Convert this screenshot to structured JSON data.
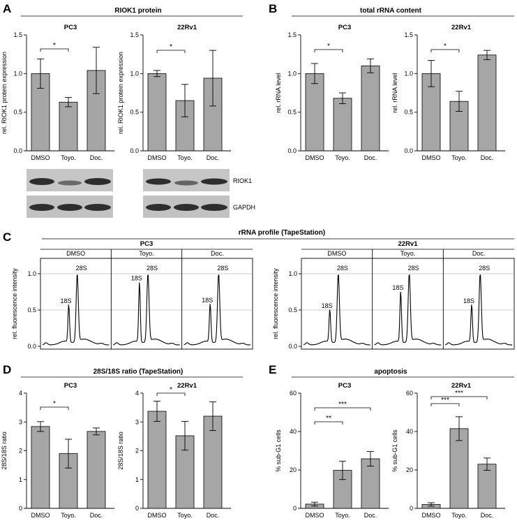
{
  "colors": {
    "bar": "#a6a6a6",
    "axis": "#000000",
    "blot_bg": "#c4c4c4",
    "band": "#303030",
    "grid": "#9a9a9a"
  },
  "panels": {
    "A": {
      "letter": "A",
      "title": "RIOK1 protein"
    },
    "B": {
      "letter": "B",
      "title": "total rRNA content"
    },
    "C": {
      "letter": "C",
      "title": "rRNA profile (TapeStation)"
    },
    "D": {
      "letter": "D",
      "title": "28S/18S ratio (TapeStation)"
    },
    "E": {
      "letter": "E",
      "title": "apoptosis"
    }
  },
  "blots": {
    "labels": [
      "RIOK1",
      "GAPDH"
    ]
  },
  "chart_data": [
    {
      "id": "A-PC3",
      "type": "bar",
      "title": "PC3",
      "ylabel": "rel. RIOK1 protein expression",
      "categories": [
        "DMSO",
        "Toyo.",
        "Doc."
      ],
      "values": [
        1.0,
        0.63,
        1.04
      ],
      "errors": [
        0.19,
        0.06,
        0.3
      ],
      "ylim": [
        0,
        1.5
      ],
      "yticks": [
        "0.0",
        "0.5",
        "1.0",
        "1.5"
      ],
      "significance": [
        {
          "from": 0,
          "to": 1,
          "label": "*"
        }
      ]
    },
    {
      "id": "A-22Rv1",
      "type": "bar",
      "title": "22Rv1",
      "ylabel": "rel. RIOK1 protein expression",
      "categories": [
        "DMSO",
        "Toyo.",
        "Doc."
      ],
      "values": [
        1.0,
        0.65,
        0.94
      ],
      "errors": [
        0.04,
        0.21,
        0.36
      ],
      "ylim": [
        0,
        1.5
      ],
      "yticks": [
        "0.0",
        "0.5",
        "1.0",
        "1.5"
      ],
      "significance": [
        {
          "from": 0,
          "to": 1,
          "label": "*"
        }
      ]
    },
    {
      "id": "B-PC3",
      "type": "bar",
      "title": "PC3",
      "ylabel": "rel. rRNA level",
      "categories": [
        "DMSO",
        "Toyo.",
        "Doc."
      ],
      "values": [
        1.0,
        0.68,
        1.1
      ],
      "errors": [
        0.13,
        0.07,
        0.09
      ],
      "ylim": [
        0,
        1.5
      ],
      "yticks": [
        "0.0",
        "0.5",
        "1.0",
        "1.5"
      ],
      "significance": [
        {
          "from": 0,
          "to": 1,
          "label": "*"
        }
      ]
    },
    {
      "id": "B-22Rv1",
      "type": "bar",
      "title": "22Rv1",
      "ylabel": "rel. rRNA level",
      "categories": [
        "DMSO",
        "Toyo.",
        "Doc."
      ],
      "values": [
        1.0,
        0.64,
        1.24
      ],
      "errors": [
        0.17,
        0.13,
        0.06
      ],
      "ylim": [
        0,
        1.5
      ],
      "yticks": [
        "0.0",
        "0.5",
        "1.0",
        "1.5"
      ],
      "significance": [
        {
          "from": 0,
          "to": 1,
          "label": "*"
        }
      ]
    },
    {
      "id": "C-PC3",
      "type": "line",
      "group": "PC3",
      "ylabel": "rel. fluorescence intensity",
      "yticks": [
        "0.0",
        "0.5",
        "1.0"
      ],
      "ylim": [
        0,
        1.1
      ],
      "subpanels": [
        {
          "label": "DMSO",
          "peak18S": 0.55,
          "peak28S": 1.0
        },
        {
          "label": "Toyo.",
          "peak18S": 0.86,
          "peak28S": 1.0
        },
        {
          "label": "Doc.",
          "peak18S": 0.56,
          "peak28S": 1.0
        }
      ],
      "peak_labels": [
        "18S",
        "28S"
      ]
    },
    {
      "id": "C-22Rv1",
      "type": "line",
      "group": "22Rv1",
      "ylabel": "rel. fluorescence intensity",
      "yticks": [
        "0.0",
        "0.5",
        "1.0"
      ],
      "ylim": [
        0,
        1.1
      ],
      "subpanels": [
        {
          "label": "DMSO",
          "peak18S": 0.48,
          "peak28S": 1.0
        },
        {
          "label": "Toyo.",
          "peak18S": 0.73,
          "peak28S": 1.0
        },
        {
          "label": "Doc.",
          "peak18S": 0.55,
          "peak28S": 1.0
        }
      ],
      "peak_labels": [
        "18S",
        "28S"
      ]
    },
    {
      "id": "D-PC3",
      "type": "bar",
      "title": "PC3",
      "ylabel": "28S/18S ratio",
      "categories": [
        "DMSO",
        "Toyo.",
        "Doc."
      ],
      "values": [
        2.84,
        1.9,
        2.67
      ],
      "errors": [
        0.17,
        0.5,
        0.12
      ],
      "ylim": [
        0,
        4
      ],
      "yticks": [
        "0",
        "1",
        "2",
        "3",
        "4"
      ],
      "significance": [
        {
          "from": 0,
          "to": 1,
          "label": "*"
        }
      ]
    },
    {
      "id": "D-22Rv1",
      "type": "bar",
      "title": "22Rv1",
      "ylabel": "28S/18S ratio",
      "categories": [
        "DMSO",
        "Toyo.",
        "Doc."
      ],
      "values": [
        3.37,
        2.52,
        3.2
      ],
      "errors": [
        0.35,
        0.5,
        0.5
      ],
      "ylim": [
        0,
        4
      ],
      "yticks": [
        "0",
        "1",
        "2",
        "3",
        "4"
      ],
      "significance": [
        {
          "from": 0,
          "to": 1,
          "label": "*"
        }
      ]
    },
    {
      "id": "E-PC3",
      "type": "bar",
      "title": "PC3",
      "ylabel": "% sub-G1 cells",
      "categories": [
        "DMSO",
        "Toyo.",
        "Doc."
      ],
      "values": [
        2.2,
        19.8,
        25.8
      ],
      "errors": [
        1.0,
        4.8,
        3.8
      ],
      "ylim": [
        0,
        60
      ],
      "yticks": [
        "0",
        "20",
        "40",
        "60"
      ],
      "significance": [
        {
          "from": 0,
          "to": 1,
          "label": "**"
        },
        {
          "from": 0,
          "to": 2,
          "label": "***"
        }
      ]
    },
    {
      "id": "E-22Rv1",
      "type": "bar",
      "title": "22Rv1",
      "ylabel": "% sub-G1 cells",
      "categories": [
        "DMSO",
        "Toyo.",
        "Doc."
      ],
      "values": [
        2.0,
        41.5,
        23.0
      ],
      "errors": [
        0.9,
        6.2,
        3.2
      ],
      "ylim": [
        0,
        60
      ],
      "yticks": [
        "0",
        "20",
        "40",
        "60"
      ],
      "significance": [
        {
          "from": 0,
          "to": 1,
          "label": "***"
        },
        {
          "from": 0,
          "to": 2,
          "label": "***"
        }
      ]
    }
  ]
}
